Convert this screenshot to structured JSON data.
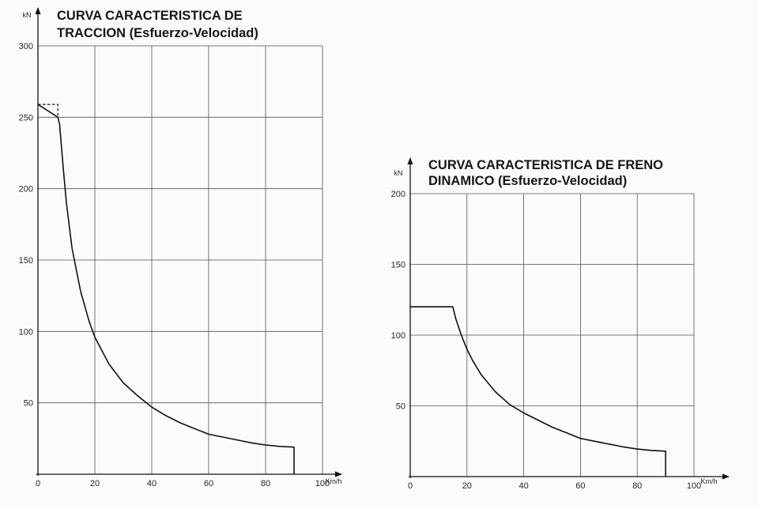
{
  "chart_data": [
    {
      "type": "line",
      "title_lines": [
        "CURVA CARACTERISTICA DE",
        "TRACCION (Esfuerzo-Velocidad)"
      ],
      "xlabel": "Km/h",
      "ylabel": "kN",
      "xlim": [
        0,
        100
      ],
      "ylim": [
        0,
        300
      ],
      "x_ticks": [
        0,
        20,
        40,
        60,
        80,
        100
      ],
      "y_ticks": [
        0,
        50,
        100,
        150,
        200,
        250,
        300
      ],
      "x_tick_labels": [
        "0",
        "20",
        "40",
        "60",
        "80",
        "100"
      ],
      "y_tick_labels": [
        "",
        "50",
        "100",
        "150",
        "200",
        "250",
        "300"
      ],
      "grid": true,
      "series": [
        {
          "style": "solid",
          "x": [
            0,
            7,
            7.6,
            9,
            10,
            12,
            15,
            18,
            20,
            25,
            30,
            35,
            40,
            45,
            50,
            55,
            60,
            65,
            70,
            75,
            80,
            85,
            90,
            90
          ],
          "y": [
            259,
            250,
            245,
            212,
            190,
            158,
            128,
            107,
            96,
            77,
            64,
            55,
            47,
            41,
            36,
            32,
            28,
            26,
            24,
            22,
            20.5,
            19.5,
            19,
            0
          ]
        },
        {
          "style": "dashed",
          "x": [
            0,
            7,
            7
          ],
          "y": [
            259,
            259,
            250
          ]
        }
      ]
    },
    {
      "type": "line",
      "title_lines": [
        "CURVA CARACTERISTICA DE FRENO",
        "DINAMICO (Esfuerzo-Velocidad)"
      ],
      "xlabel": "Km/h",
      "ylabel": "kN",
      "xlim": [
        0,
        100
      ],
      "ylim": [
        0,
        200
      ],
      "x_ticks": [
        0,
        20,
        40,
        60,
        80,
        100
      ],
      "y_ticks": [
        0,
        50,
        100,
        150,
        200
      ],
      "x_tick_labels": [
        "0",
        "20",
        "40",
        "60",
        "80",
        "100"
      ],
      "y_tick_labels": [
        "",
        "50",
        "100",
        "150",
        "200"
      ],
      "grid": true,
      "series": [
        {
          "style": "solid",
          "x": [
            0,
            15,
            16,
            18,
            20,
            22,
            25,
            30,
            35,
            40,
            45,
            50,
            55,
            60,
            65,
            70,
            75,
            80,
            85,
            90,
            90
          ],
          "y": [
            120,
            120,
            112,
            100,
            90,
            82,
            72,
            60,
            51,
            45,
            40,
            35,
            31,
            27,
            25,
            23,
            21,
            19.5,
            18.5,
            18,
            0
          ]
        }
      ]
    }
  ]
}
